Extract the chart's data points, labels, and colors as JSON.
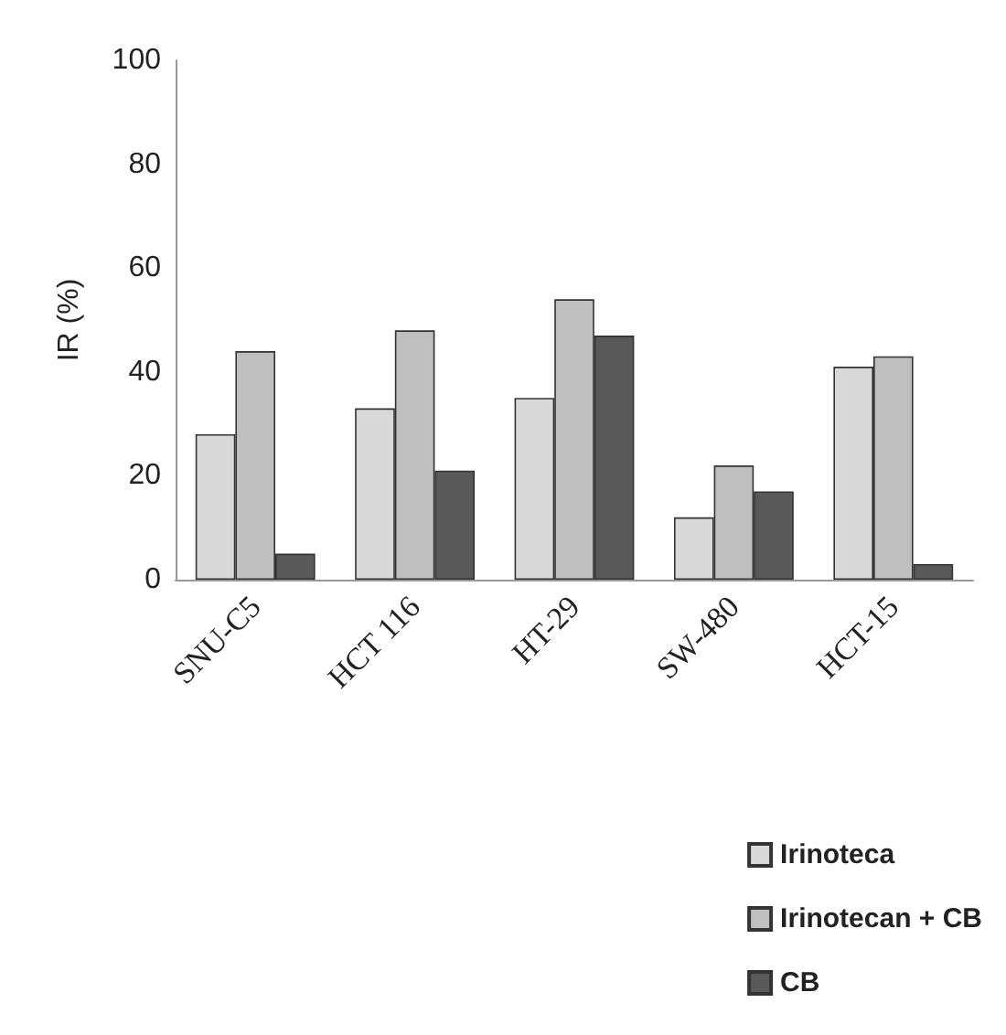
{
  "chart_data": {
    "type": "bar",
    "ylabel": "IR (%)",
    "categories": [
      "SNU-C5",
      "HCT 116",
      "HT-29",
      "SW-480",
      "HCT-15"
    ],
    "series": [
      {
        "name": "Irinoteca",
        "color": "#d9d9d9",
        "values": [
          28,
          33,
          35,
          12,
          41
        ]
      },
      {
        "name": "Irinotecan + CB",
        "color": "#bfbfbf",
        "values": [
          44,
          48,
          54,
          22,
          43
        ]
      },
      {
        "name": "CB",
        "color": "#595959",
        "values": [
          5,
          21,
          47,
          17,
          3
        ]
      }
    ],
    "ylim": [
      0,
      100
    ],
    "yticks": [
      0,
      20,
      40,
      60,
      80,
      100
    ],
    "grid": false,
    "legend": "bottom right"
  }
}
